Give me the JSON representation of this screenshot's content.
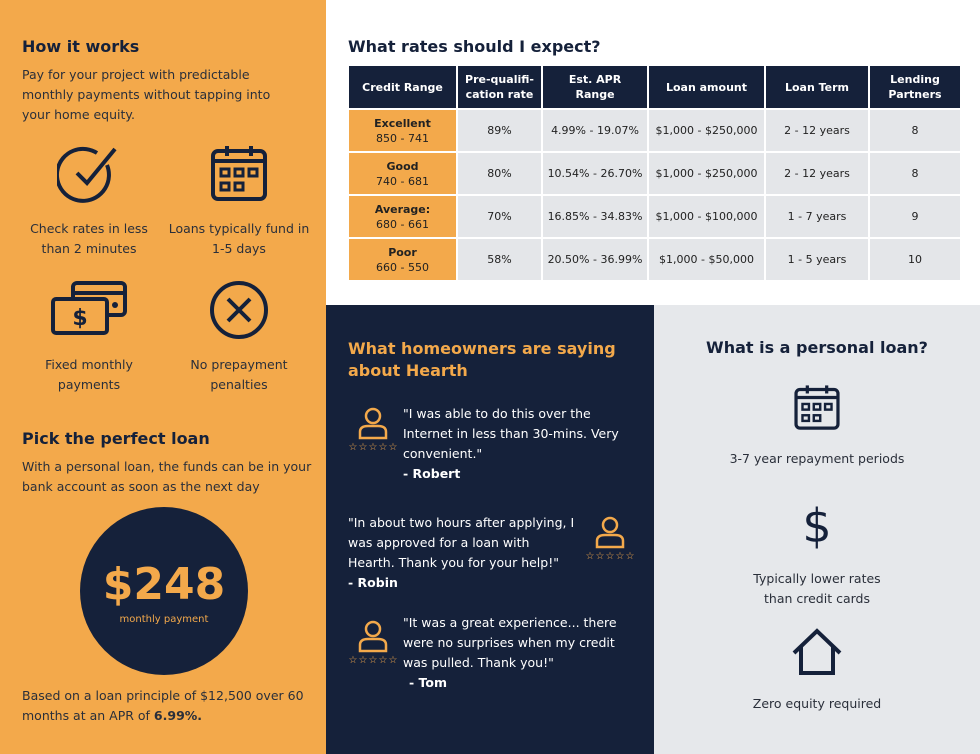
{
  "how_it_works": {
    "title": "How it works",
    "desc": "Pay for your project with predictable monthly payments without tapping into your home equity.",
    "features": [
      {
        "icon": "check-circle-icon",
        "label": "Check rates in less than 2 minutes"
      },
      {
        "icon": "calendar-icon",
        "label": "Loans typically fund in 1-5 days"
      },
      {
        "icon": "cash-card-icon",
        "label": "Fixed monthly payments"
      },
      {
        "icon": "x-circle-icon",
        "label": "No prepayment penalties"
      }
    ]
  },
  "pick": {
    "title": "Pick the perfect loan",
    "desc": "With a personal loan, the funds can be in your bank account as soon as the next day",
    "amount": "$248",
    "amount_label": "monthly payment",
    "footnote": "Based on a loan principle of $12,500 over 60 months at an APR of ",
    "apr": "6.99%."
  },
  "rates": {
    "title": "What rates should I expect?",
    "headers": [
      "Credit Range",
      "Pre-qualifi-cation rate",
      "Est. APR Range",
      "Loan amount",
      "Loan Term",
      "Lending Partners"
    ],
    "rows": [
      {
        "tier": "Excellent",
        "range": "850 - 741",
        "prequal": "89%",
        "apr": "4.99% - 19.07%",
        "amount": "$1,000 - $250,000",
        "term": "2 - 12 years",
        "partners": "8"
      },
      {
        "tier": "Good",
        "range": "740 - 681",
        "prequal": "80%",
        "apr": "10.54% - 26.70%",
        "amount": "$1,000 - $250,000",
        "term": "2 - 12 years",
        "partners": "8"
      },
      {
        "tier": "Average:",
        "range": "680 - 661",
        "prequal": "70%",
        "apr": "16.85% - 34.83%",
        "amount": "$1,000 - $100,000",
        "term": "1 - 7 years",
        "partners": "9"
      },
      {
        "tier": "Poor",
        "range": "660 - 550",
        "prequal": "58%",
        "apr": "20.50% - 36.99%",
        "amount": "$1,000 - $50,000",
        "term": "1 - 5 years",
        "partners": "10"
      }
    ]
  },
  "testimonials": {
    "title": "What homeowners are saying about Hearth",
    "items": [
      {
        "quote": "\"I was able to do this over the Internet in less than 30-mins. Very convenient.\"",
        "author": "- Robert"
      },
      {
        "quote": "\"In about two hours after applying, I was approved for a loan with Hearth. Thank you for your help!\"",
        "author": "- Robin"
      },
      {
        "quote": "\"It was a great experience... there were no surprises when my credit was pulled. Thank you!\"",
        "author": "- Tom"
      }
    ]
  },
  "personal_loan": {
    "title": "What is a personal loan?",
    "items": [
      {
        "icon": "calendar-icon",
        "label": "3-7 year repayment periods"
      },
      {
        "icon": "dollar-icon",
        "label": "Typically lower rates than credit cards"
      },
      {
        "icon": "house-icon",
        "label": "Zero equity required"
      }
    ]
  },
  "colors": {
    "orange": "#f3a94b",
    "navy": "#15213a",
    "gray": "#e6e8eb"
  }
}
